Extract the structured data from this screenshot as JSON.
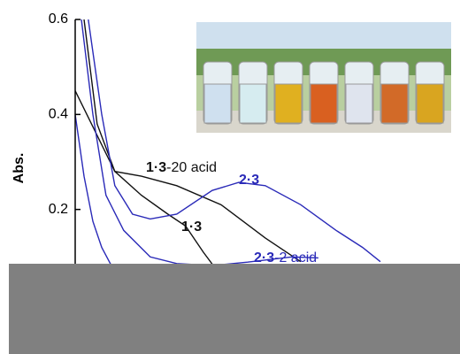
{
  "chart_data": {
    "type": "line",
    "ylabel": "Abs.",
    "xlim": [
      0,
      100
    ],
    "ylim": [
      0,
      0.6
    ],
    "yticks": [
      {
        "value": 0.6,
        "label": "0.6"
      },
      {
        "value": 0.4,
        "label": "0.4"
      },
      {
        "value": 0.2,
        "label": "0.2"
      }
    ],
    "series": [
      {
        "color": "#111111",
        "x": [
          0,
          10.3,
          17.2,
          26.4,
          37.9,
          49.4,
          58.6
        ],
        "values": [
          0.45,
          0.28,
          0.27,
          0.25,
          0.21,
          0.14,
          0.09
        ]
      },
      {
        "color": "#111111",
        "x": [
          2.3,
          5.7,
          10.3,
          17.2,
          24.1,
          28.7,
          33.3,
          35.6
        ],
        "values": [
          0.6,
          0.38,
          0.28,
          0.23,
          0.19,
          0.165,
          0.11,
          0.085
        ]
      },
      {
        "color": "#2a2ab8",
        "x": [
          3.4,
          6.9,
          10.3,
          14.9,
          19.5,
          26.4,
          35.6,
          42.5,
          49.4,
          58.6,
          67.8,
          74.7,
          79.3
        ],
        "values": [
          0.6,
          0.4,
          0.25,
          0.19,
          0.18,
          0.19,
          0.24,
          0.257,
          0.25,
          0.21,
          0.156,
          0.12,
          0.09
        ]
      },
      {
        "color": "#2a2ab8",
        "x": [
          1.6,
          4.6,
          8,
          12.6,
          19.5,
          26.4,
          35.6,
          44.8,
          56.3,
          63.2
        ],
        "values": [
          0.6,
          0.4,
          0.23,
          0.156,
          0.1,
          0.086,
          0.082,
          0.089,
          0.1,
          0.098
        ]
      },
      {
        "color": "#2a2ab8",
        "x": [
          0,
          2.3,
          4.6,
          6.9,
          9.2
        ],
        "values": [
          0.4,
          0.27,
          0.175,
          0.12,
          0.085
        ]
      }
    ],
    "annotations": [
      {
        "label": [
          "1·3",
          "-20 acid"
        ],
        "color": "#111111"
      },
      {
        "label": [
          "2·3"
        ],
        "color": "#2a2ab8"
      },
      {
        "label": [
          "1·3"
        ],
        "color": "#111111"
      },
      {
        "label": [
          "2·3",
          "-2 acid"
        ],
        "color": "#2a2ab8"
      }
    ]
  }
}
